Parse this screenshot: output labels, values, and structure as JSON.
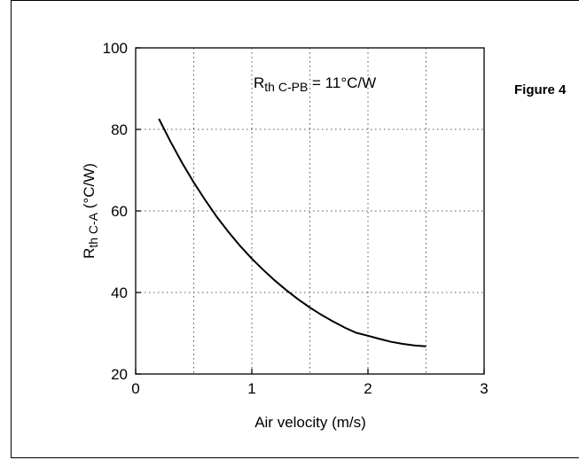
{
  "figure_label": "Figure 4",
  "chart_data": {
    "type": "line",
    "title": "",
    "annotation": {
      "main": "R",
      "sub": "th C-PB",
      "rest": " = 11°C/W"
    },
    "xlabel": "Air velocity (m/s)",
    "ylabel": {
      "main": "R",
      "sub": "th C-A",
      "rest": " (°C/W)"
    },
    "xlim": [
      0,
      3
    ],
    "ylim": [
      20,
      100
    ],
    "x_ticks": [
      0,
      1,
      2,
      3
    ],
    "y_ticks": [
      20,
      40,
      60,
      80,
      100
    ],
    "x_tick_labels": [
      "0",
      "1",
      "2",
      "3"
    ],
    "y_tick_labels": [
      "20",
      "40",
      "60",
      "80",
      "100"
    ],
    "grid": true,
    "series": [
      {
        "x": [
          0.2,
          0.3,
          0.4,
          0.5,
          0.6,
          0.7,
          0.8,
          0.9,
          1.0,
          1.1,
          1.2,
          1.3,
          1.4,
          1.5,
          1.6,
          1.7,
          1.8,
          1.9,
          2.0,
          2.1,
          2.2,
          2.3,
          2.4,
          2.5
        ],
        "y": [
          82.6,
          77.0,
          71.8,
          67.0,
          62.6,
          58.5,
          54.8,
          51.4,
          48.3,
          45.5,
          42.9,
          40.5,
          38.3,
          36.3,
          34.5,
          32.9,
          31.4,
          30.1,
          29.4,
          28.6,
          27.9,
          27.4,
          27.0,
          26.8
        ]
      }
    ]
  }
}
